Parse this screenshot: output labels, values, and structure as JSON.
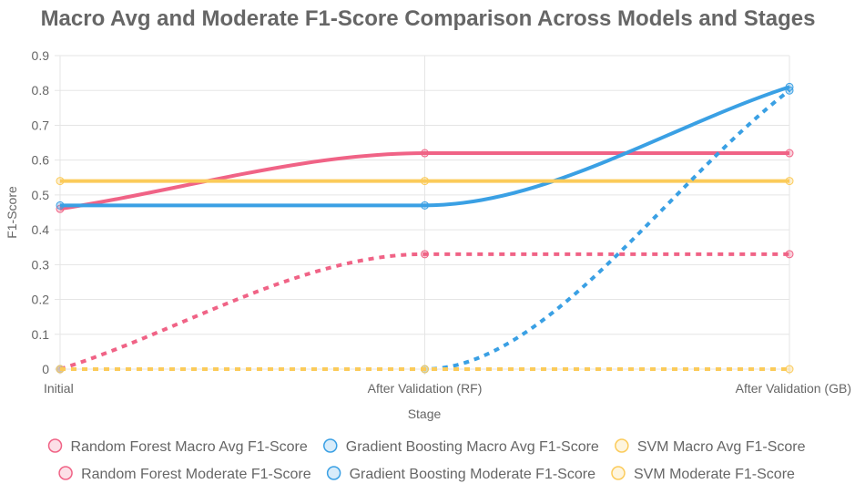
{
  "chart_data": {
    "type": "line",
    "title": "Macro Avg and Moderate F1-Score Comparison Across Models and Stages",
    "xlabel": "Stage",
    "ylabel": "F1-Score",
    "categories": [
      "Initial",
      "After Validation (RF)",
      "After Validation (GB)"
    ],
    "ylim": [
      0,
      0.9
    ],
    "yticks": [
      "0",
      "0.1",
      "0.2",
      "0.3",
      "0.4",
      "0.5",
      "0.6",
      "0.7",
      "0.8",
      "0.9"
    ],
    "grid": true,
    "legend_position": "bottom",
    "series": [
      {
        "name": "Random Forest Macro Avg F1-Score",
        "values": [
          0.46,
          0.62,
          0.62
        ],
        "color": "#f06386",
        "dashed": false
      },
      {
        "name": "Gradient Boosting Macro Avg F1-Score",
        "values": [
          0.47,
          0.47,
          0.81
        ],
        "color": "#3aa0e4",
        "dashed": false
      },
      {
        "name": "SVM Macro Avg F1-Score",
        "values": [
          0.54,
          0.54,
          0.54
        ],
        "color": "#fbcb5a",
        "dashed": false
      },
      {
        "name": "Random Forest Moderate F1-Score",
        "values": [
          0.0,
          0.33,
          0.33
        ],
        "color": "#f06386",
        "dashed": true
      },
      {
        "name": "Gradient Boosting Moderate F1-Score",
        "values": [
          0.0,
          0.0,
          0.8
        ],
        "color": "#3aa0e4",
        "dashed": true
      },
      {
        "name": "SVM Moderate F1-Score",
        "values": [
          0.0,
          0.0,
          0.0
        ],
        "color": "#fbcb5a",
        "dashed": true
      }
    ]
  }
}
